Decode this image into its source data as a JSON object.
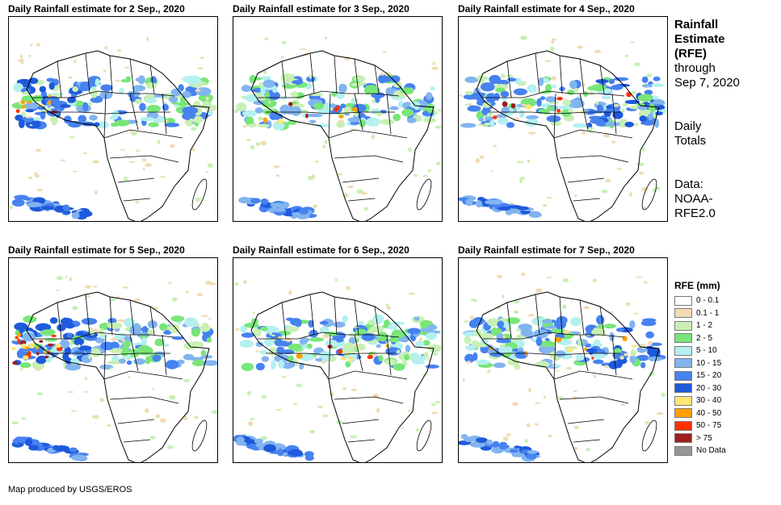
{
  "panels": [
    {
      "title": "Daily Rainfall estimate for 2 Sep., 2020",
      "focus": "west"
    },
    {
      "title": "Daily Rainfall estimate for 3 Sep., 2020",
      "focus": "central"
    },
    {
      "title": "Daily Rainfall estimate for 4 Sep., 2020",
      "focus": "east"
    },
    {
      "title": "Daily Rainfall estimate for 5 Sep., 2020",
      "focus": "west-heavy"
    },
    {
      "title": "Daily Rainfall estimate for 6 Sep., 2020",
      "focus": "central"
    },
    {
      "title": "Daily Rainfall estimate for 7 Sep., 2020",
      "focus": "east"
    }
  ],
  "side": {
    "title_lines": [
      "Rainfall",
      "Estimate",
      "(RFE)"
    ],
    "through": "through",
    "date": "Sep 7, 2020",
    "daily_lines": [
      "Daily",
      "Totals"
    ],
    "data_lines": [
      "Data:",
      "NOAA-",
      "RFE2.0"
    ]
  },
  "legend": {
    "title": "RFE (mm)",
    "items": [
      {
        "label": "0 - 0.1",
        "color": "#ffffff"
      },
      {
        "label": "0.1 - 1",
        "color": "#f0dcb4"
      },
      {
        "label": "1 - 2",
        "color": "#c8f0b4"
      },
      {
        "label": "2 - 5",
        "color": "#78e678"
      },
      {
        "label": "5 - 10",
        "color": "#b4f0f0"
      },
      {
        "label": "10 - 15",
        "color": "#82b4f0"
      },
      {
        "label": "15 - 20",
        "color": "#4682f0"
      },
      {
        "label": "20 - 30",
        "color": "#1e5adc"
      },
      {
        "label": "30 - 40",
        "color": "#ffe678"
      },
      {
        "label": "40 - 50",
        "color": "#ffa000"
      },
      {
        "label": "50 - 75",
        "color": "#ff3200"
      },
      {
        "label": "> 75",
        "color": "#a01e1e"
      },
      {
        "label": "No Data",
        "color": "#969696"
      }
    ]
  },
  "credit": "Map produced by USGS/EROS"
}
